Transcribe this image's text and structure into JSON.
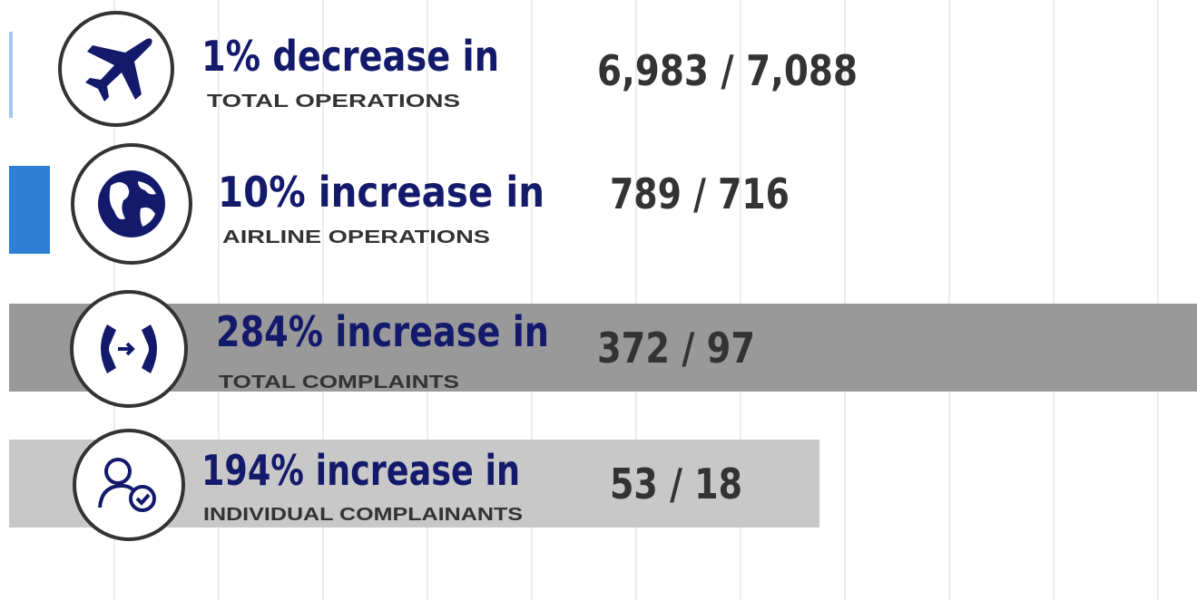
{
  "items": [
    {
      "headline": "1% decrease in",
      "label": "TOTAL OPERATIONS",
      "figures": "6,983 / 7,088"
    },
    {
      "headline": "10% increase in",
      "label": "AIRLINE OPERATIONS",
      "figures": "789 / 716"
    },
    {
      "headline": "284% increase in",
      "label": "TOTAL COMPLAINTS",
      "figures": "372 / 97"
    },
    {
      "headline": "194% increase in",
      "label": "INDIVIDUAL COMPLAINANTS",
      "figures": "53 / 18"
    }
  ]
}
